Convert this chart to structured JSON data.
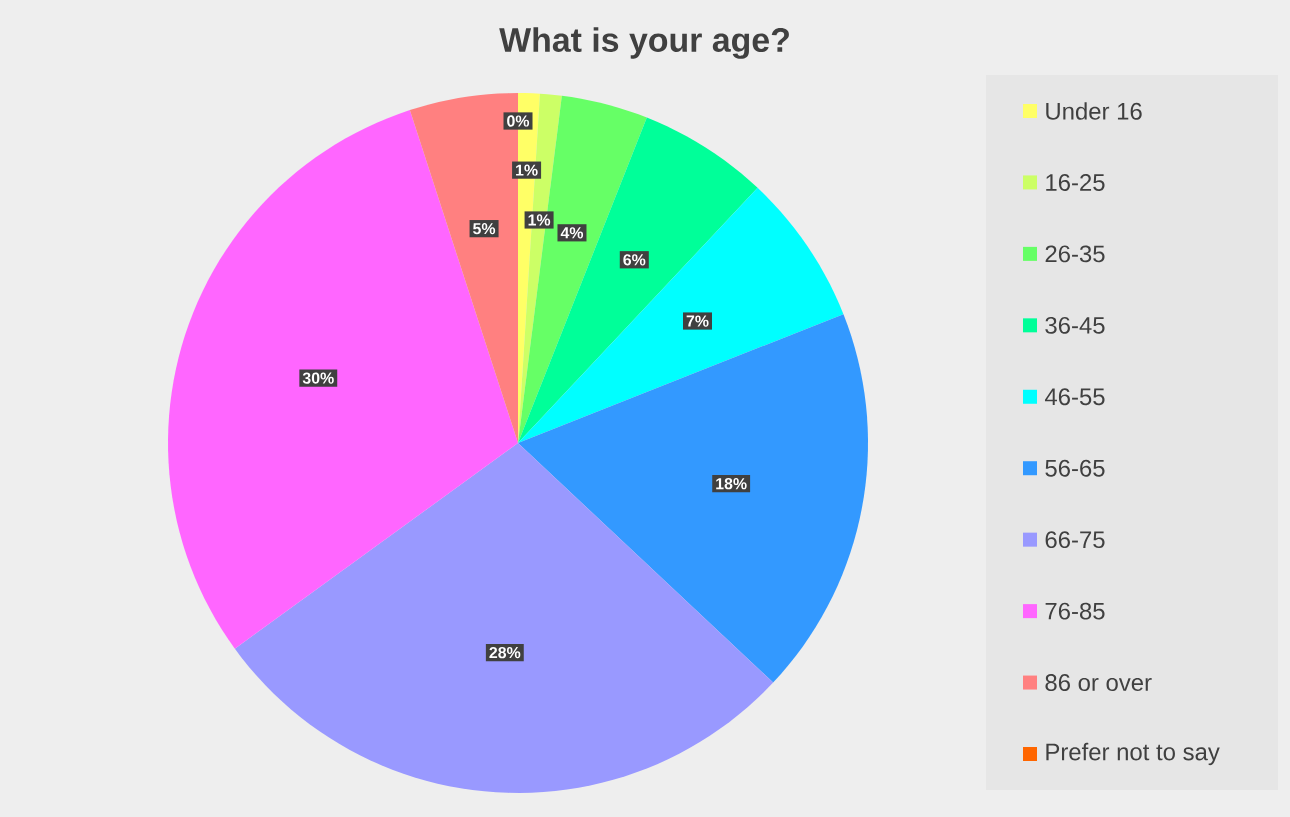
{
  "chart_data": {
    "type": "pie",
    "title": "What is your age?",
    "categories": [
      "Under 16",
      "16-25",
      "26-35",
      "36-45",
      "46-55",
      "56-65",
      "66-75",
      "76-85",
      "86 or over",
      "Prefer not to say"
    ],
    "values": [
      1,
      1,
      4,
      6,
      7,
      18,
      28,
      30,
      5,
      0
    ],
    "value_labels": [
      "1%",
      "1%",
      "4%",
      "6%",
      "7%",
      "18%",
      "28%",
      "30%",
      "5%",
      "0%"
    ],
    "colors": [
      "#ffff66",
      "#ccff66",
      "#66ff66",
      "#00ff99",
      "#00ffff",
      "#3399ff",
      "#9999ff",
      "#ff66ff",
      "#ff8080",
      "#ff6600"
    ],
    "legend": "right"
  }
}
